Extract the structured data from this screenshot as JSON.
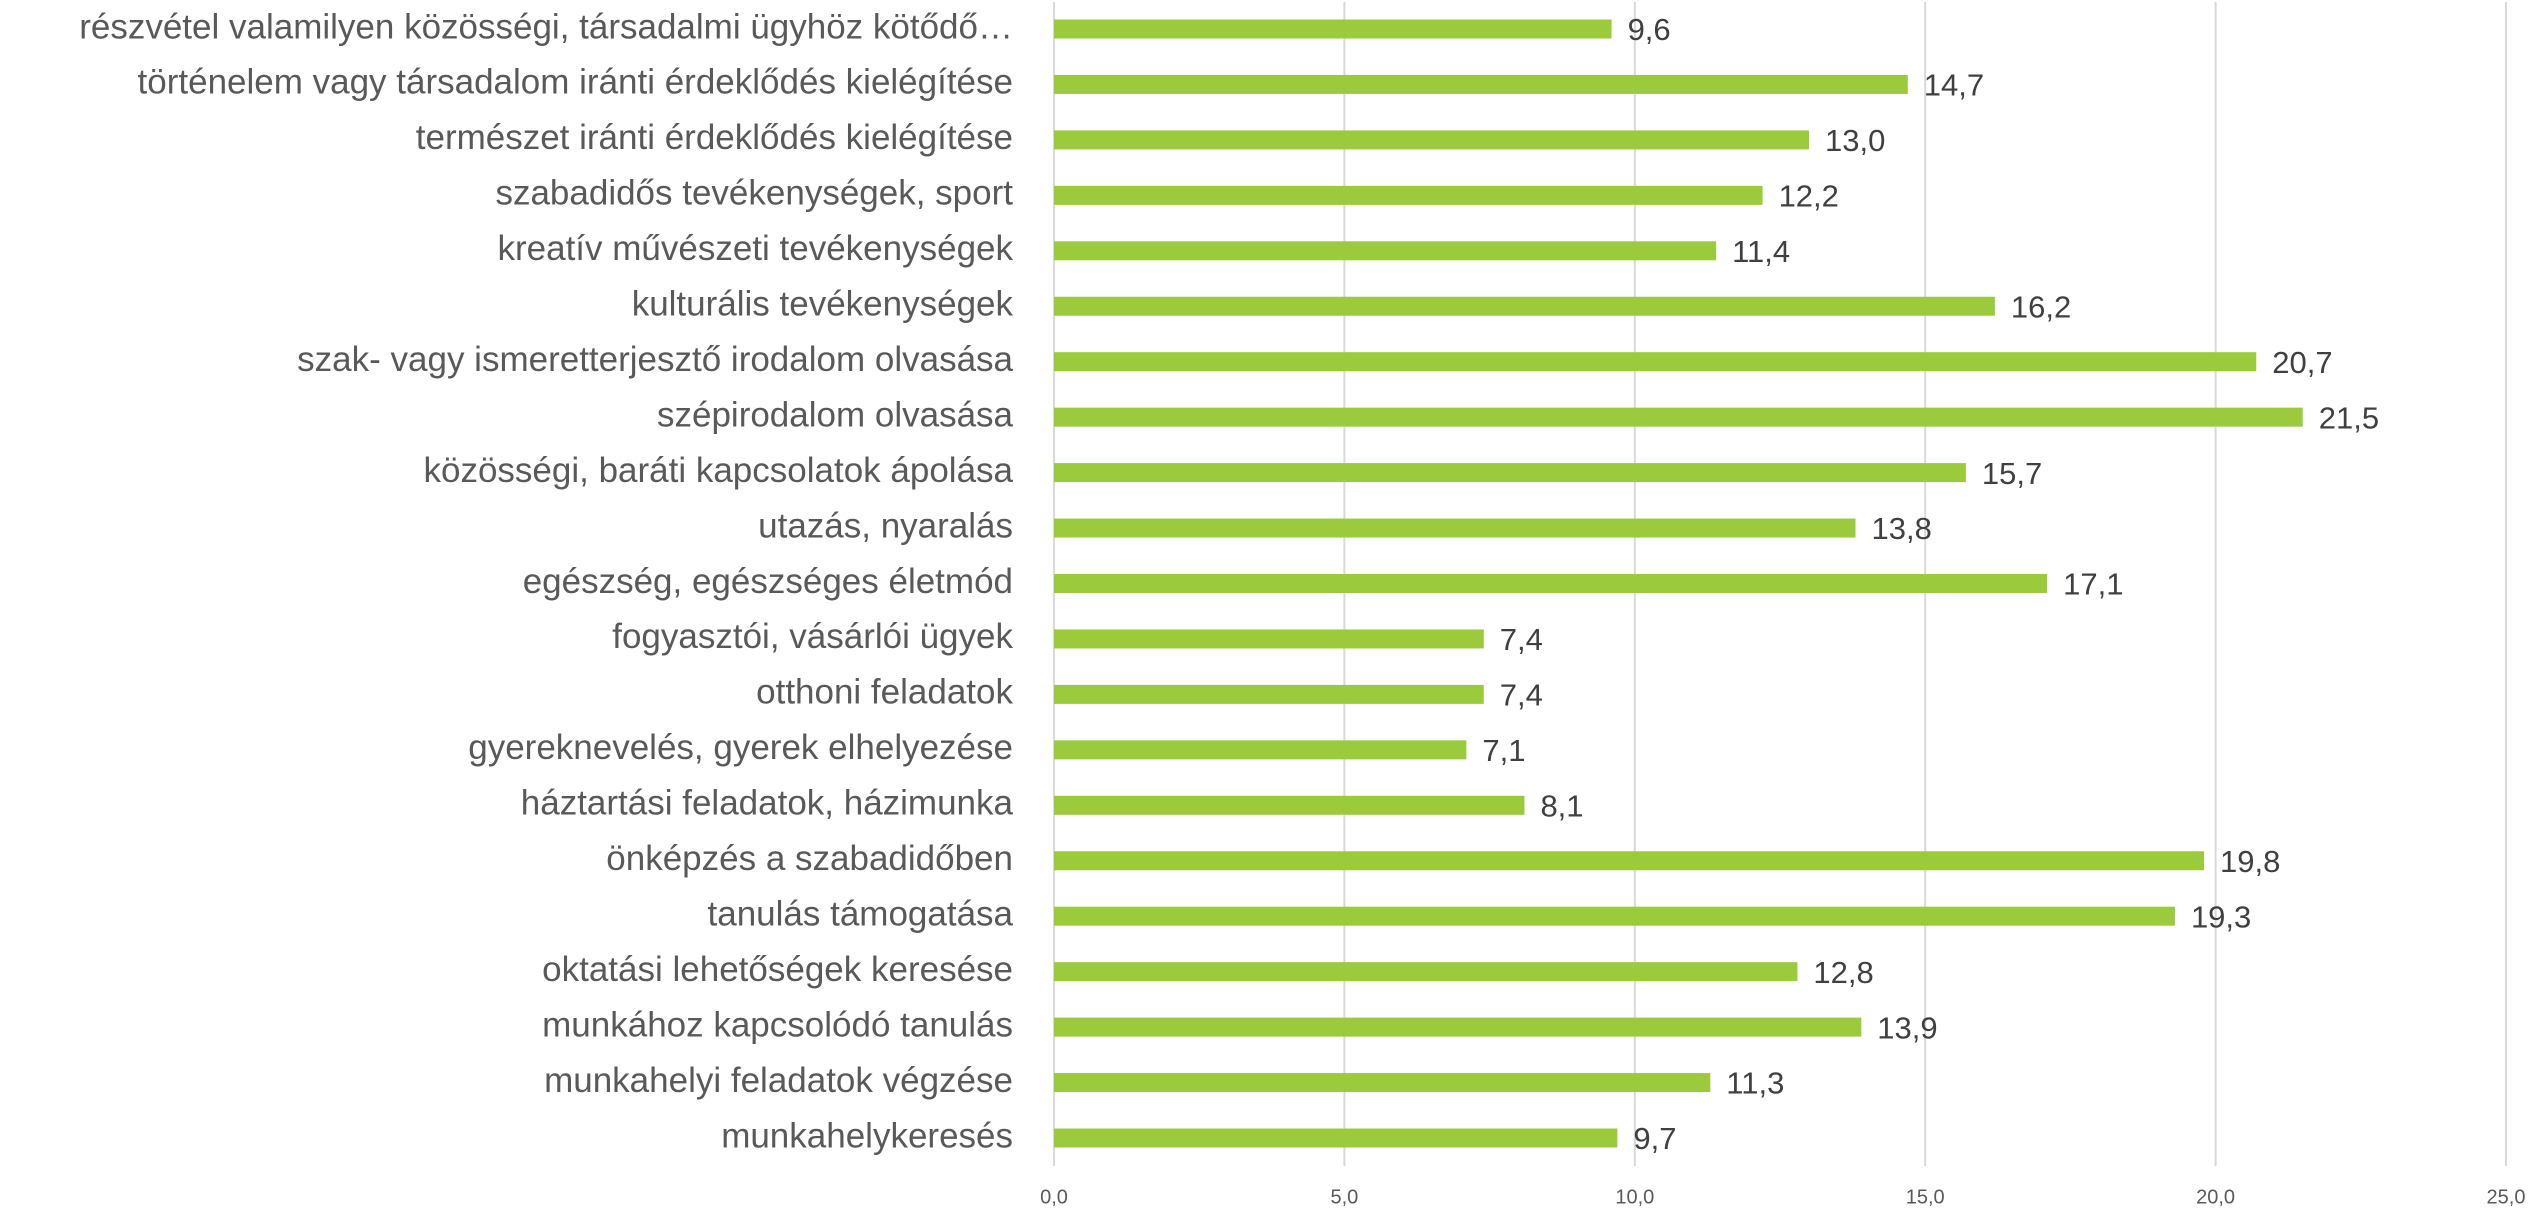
{
  "chart_data": {
    "type": "bar",
    "orientation": "horizontal",
    "categories": [
      "részvétel valamilyen közösségi, társadalmi ügyhöz kötődő…",
      "történelem vagy társadalom iránti érdeklődés kielégítése",
      "természet iránti érdeklődés kielégítése",
      "szabadidős tevékenységek, sport",
      "kreatív művészeti tevékenységek",
      "kulturális tevékenységek",
      "szak- vagy ismeretterjesztő irodalom olvasása",
      "szépirodalom olvasása",
      "közösségi, baráti kapcsolatok ápolása",
      "utazás, nyaralás",
      "egészség, egészséges életmód",
      "fogyasztói, vásárlói ügyek",
      "otthoni feladatok",
      "gyereknevelés, gyerek elhelyezése",
      "háztartási feladatok, házimunka",
      "önképzés a szabadidőben",
      "tanulás támogatása",
      "oktatási lehetőségek keresése",
      "munkához kapcsolódó tanulás",
      "munkahelyi feladatok végzése",
      "munkahelykeresés"
    ],
    "values": [
      9.6,
      14.7,
      13.0,
      12.2,
      11.4,
      16.2,
      20.7,
      21.5,
      15.7,
      13.8,
      17.1,
      7.4,
      7.4,
      7.1,
      8.1,
      19.8,
      19.3,
      12.8,
      13.9,
      11.3,
      9.7
    ],
    "value_labels": [
      "9,6",
      "14,7",
      "13,0",
      "12,2",
      "11,4",
      "16,2",
      "20,7",
      "21,5",
      "15,7",
      "13,8",
      "17,1",
      "7,4",
      "7,4",
      "7,1",
      "8,1",
      "19,8",
      "19,3",
      "12,8",
      "13,9",
      "11,3",
      "9,7"
    ],
    "color": "#9bcb3c",
    "xlim": [
      0,
      25
    ],
    "xticks": [
      {
        "value": 0,
        "label": "0,0"
      },
      {
        "value": 5,
        "label": "5,0"
      },
      {
        "value": 10,
        "label": "10,0"
      },
      {
        "value": 15,
        "label": "15,0"
      },
      {
        "value": 20,
        "label": "20,0"
      },
      {
        "value": 25,
        "label": "25,0"
      }
    ],
    "grid": true
  }
}
